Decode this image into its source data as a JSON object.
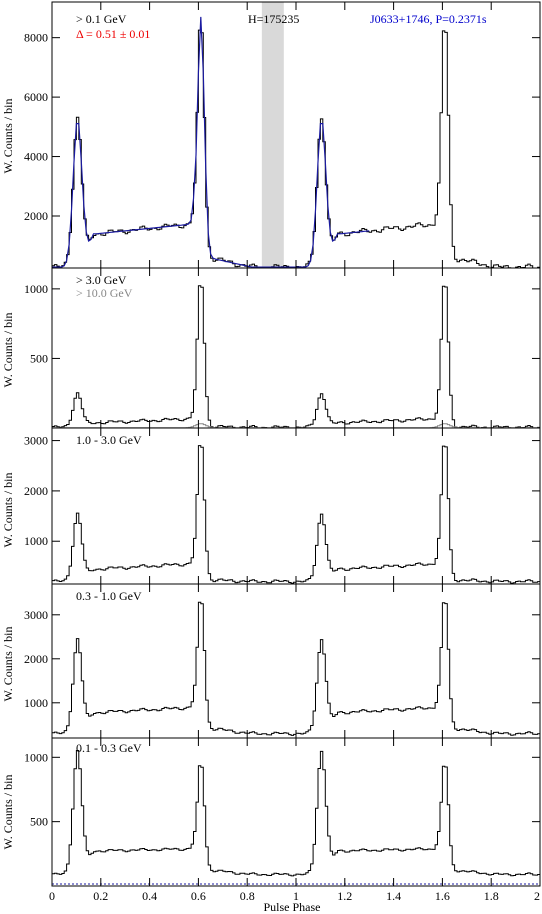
{
  "chart_data": {
    "type": "line",
    "xlabel": "Pulse Phase",
    "xlim": [
      0,
      2
    ],
    "xticks": [
      0,
      0.2,
      0.4,
      0.6,
      0.8,
      1,
      1.2,
      1.4,
      1.6,
      1.8,
      2
    ],
    "xtick_labels": [
      "0",
      "0.2",
      "0.4",
      "0.6",
      "0.8",
      "1",
      "1.2",
      "1.4",
      "1.6",
      "1.8",
      "2"
    ],
    "colors": {
      "histogram": "#000000",
      "fit": "#1a1aa0",
      "delta_text": "#ee0000",
      "source_text": "#0000cc",
      "shade": "#d9d9d9",
      "high_energy": "#888888"
    },
    "panels": [
      {
        "ylabel": "W. Counts / bin",
        "ylim": [
          250,
          9200
        ],
        "yticks": [
          2000,
          4000,
          6000,
          8000
        ],
        "ytick_labels": [
          "2000",
          "4000",
          "6000",
          "8000"
        ],
        "energy_label": "> 0.1 GeV",
        "extra_labels": [
          "Δ = 0.51 ± 0.01",
          "H=175235",
          "J0633+1746, P=0.2371s"
        ],
        "offpulse_band": [
          0.86,
          0.95
        ],
        "profile": {
          "base": 280,
          "shoulder": 1300,
          "peak1": 5300,
          "peak2": 8700,
          "bridge": [
            1350,
            1550,
            1750
          ]
        },
        "series": [
          {
            "name": "",
            "style": "histogram"
          },
          {
            "name": "",
            "style": "fit"
          }
        ]
      },
      {
        "ylabel": "W. Counts / bin",
        "ylim": [
          0,
          1150
        ],
        "yticks": [
          500,
          1000
        ],
        "ytick_labels": [
          "500",
          "1000"
        ],
        "energy_label": "> 3.0 GeV",
        "extra_labels": [
          "> 10.0 GeV"
        ],
        "profile": {
          "base": 5,
          "shoulder": 20,
          "peak1": 250,
          "peak2": 1080,
          "bridge": [
            35,
            45,
            70
          ]
        },
        "high_energy_peak": 30
      },
      {
        "ylabel": "W. Counts / bin",
        "ylim": [
          150,
          3250
        ],
        "yticks": [
          1000,
          2000,
          3000
        ],
        "ytick_labels": [
          "1000",
          "2000",
          "3000"
        ],
        "energy_label": "1.0 - 3.0 GeV",
        "profile": {
          "base": 200,
          "shoulder": 300,
          "peak1": 1550,
          "peak2": 3050,
          "bridge": [
            430,
            490,
            560
          ]
        }
      },
      {
        "ylabel": "W. Counts / bin",
        "ylim": [
          200,
          3700
        ],
        "yticks": [
          1000,
          2000,
          3000
        ],
        "ytick_labels": [
          "1000",
          "2000",
          "3000"
        ],
        "energy_label": "0.3 - 1.0 GeV",
        "profile": {
          "base": 300,
          "shoulder": 700,
          "peak1": 2450,
          "peak2": 3450,
          "bridge": [
            760,
            830,
            900
          ]
        }
      },
      {
        "ylabel": "W. Counts / bin",
        "ylim": [
          0,
          1150
        ],
        "yticks": [
          500,
          1000
        ],
        "ytick_labels": [
          "500",
          "1000"
        ],
        "energy_label": "0.1 - 0.3 GeV",
        "profile": {
          "base": 90,
          "shoulder": 200,
          "peak1": 1050,
          "peak2": 980,
          "bridge": [
            270,
            280,
            290
          ]
        }
      }
    ]
  }
}
